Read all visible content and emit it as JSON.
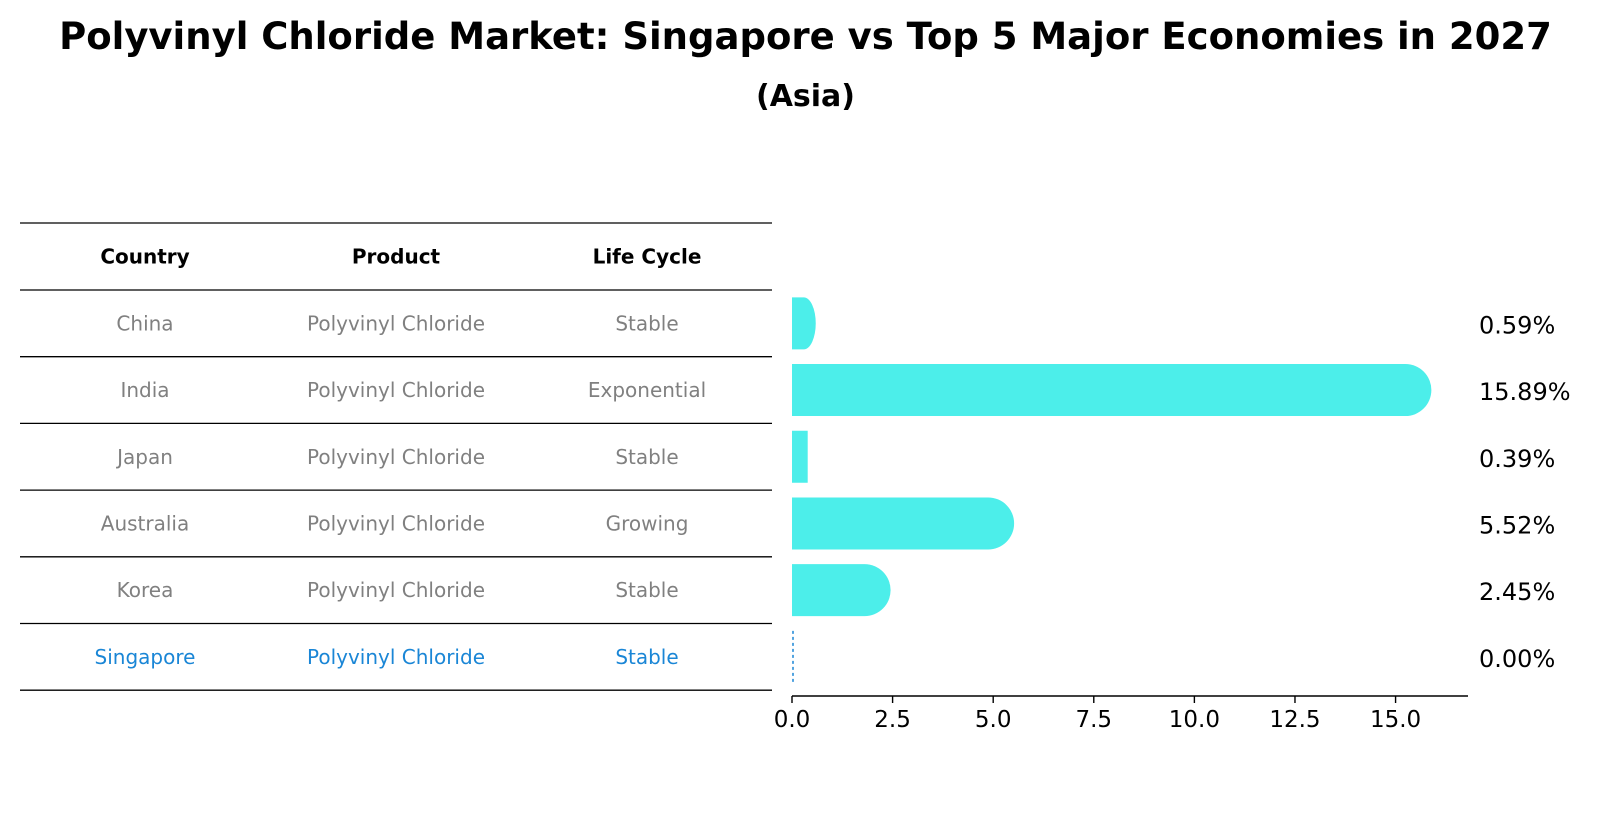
{
  "chart_data": {
    "type": "bar",
    "orientation": "horizontal",
    "title": "Polyvinyl Chloride Market: Singapore vs Top 5 Major Economies in 2027",
    "subtitle": "(Asia)",
    "table": {
      "columns": [
        "Country",
        "Product",
        "Life Cycle"
      ],
      "rows": [
        {
          "country": "China",
          "product": "Polyvinyl Chloride",
          "life_cycle": "Stable"
        },
        {
          "country": "India",
          "product": "Polyvinyl Chloride",
          "life_cycle": "Exponential"
        },
        {
          "country": "Japan",
          "product": "Polyvinyl Chloride",
          "life_cycle": "Stable"
        },
        {
          "country": "Australia",
          "product": "Polyvinyl Chloride",
          "life_cycle": "Growing"
        },
        {
          "country": "Korea",
          "product": "Polyvinyl Chloride",
          "life_cycle": "Stable"
        },
        {
          "country": "Singapore",
          "product": "Polyvinyl Chloride",
          "life_cycle": "Stable"
        }
      ]
    },
    "categories": [
      "China",
      "India",
      "Japan",
      "Australia",
      "Korea",
      "Singapore"
    ],
    "values": [
      0.59,
      15.89,
      0.39,
      5.52,
      2.45,
      0.0
    ],
    "value_labels": [
      "0.59%",
      "15.89%",
      "0.39%",
      "5.52%",
      "2.45%",
      "0.00%"
    ],
    "highlight": "Singapore",
    "xlim": [
      0,
      16.8
    ],
    "xticks": [
      0.0,
      2.5,
      5.0,
      7.5,
      10.0,
      12.5,
      15.0
    ],
    "xtick_labels": [
      "0.0",
      "2.5",
      "5.0",
      "7.5",
      "10.0",
      "12.5",
      "15.0"
    ],
    "xlabel": "",
    "ylabel": "",
    "grid": false
  },
  "colors": {
    "bar": "#4ceeea",
    "highlight_text": "#1a86d6",
    "muted_text": "#808080",
    "rule": "#000000"
  }
}
